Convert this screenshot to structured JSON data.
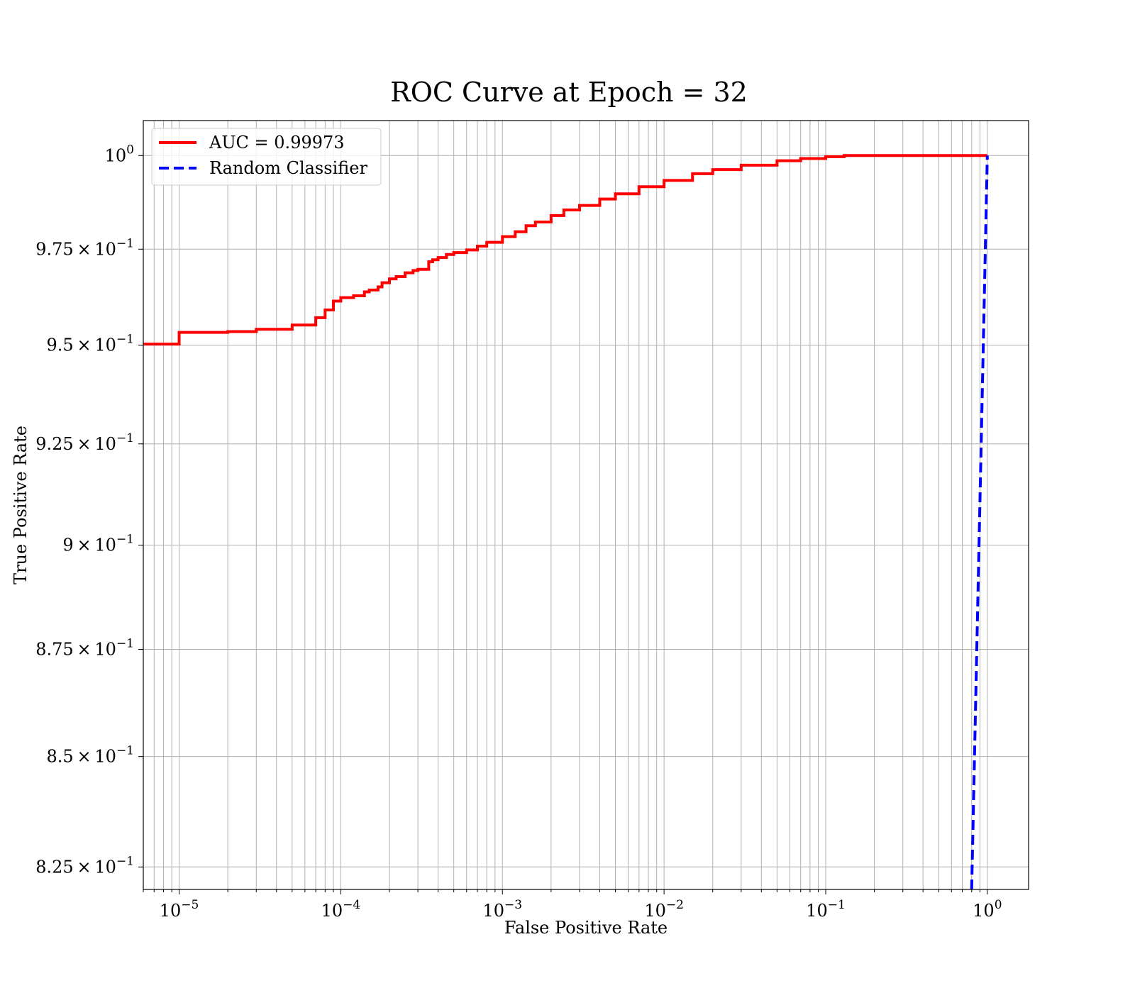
{
  "chart_data": {
    "type": "line",
    "title": "ROC Curve at Epoch = 32",
    "xlabel": "False Positive Rate",
    "ylabel": "True Positive Rate",
    "xscale": "log",
    "yscale": "log",
    "xlim": [
      6e-06,
      1.8
    ],
    "ylim": [
      0.82,
      1.0095
    ],
    "grid": true,
    "legend_position": "top-left",
    "x_ticks": [
      {
        "value": 1e-05,
        "base": "10",
        "exp": "−5"
      },
      {
        "value": 0.0001,
        "base": "10",
        "exp": "−4"
      },
      {
        "value": 0.001,
        "base": "10",
        "exp": "−3"
      },
      {
        "value": 0.01,
        "base": "10",
        "exp": "−2"
      },
      {
        "value": 0.1,
        "base": "10",
        "exp": "−1"
      },
      {
        "value": 1,
        "base": "10",
        "exp": "0"
      }
    ],
    "y_ticks": [
      {
        "value": 1.0,
        "mant": "",
        "base": "10",
        "exp": "0"
      },
      {
        "value": 0.975,
        "mant": "9.75",
        "base": "10",
        "exp": "−1"
      },
      {
        "value": 0.95,
        "mant": "9.5",
        "base": "10",
        "exp": "−1"
      },
      {
        "value": 0.925,
        "mant": "9.25",
        "base": "10",
        "exp": "−1"
      },
      {
        "value": 0.9,
        "mant": "9",
        "base": "10",
        "exp": "−1"
      },
      {
        "value": 0.875,
        "mant": "8.75",
        "base": "10",
        "exp": "−1"
      },
      {
        "value": 0.85,
        "mant": "8.5",
        "base": "10",
        "exp": "−1"
      },
      {
        "value": 0.825,
        "mant": "8.25",
        "base": "10",
        "exp": "−1"
      }
    ],
    "series": [
      {
        "name": "AUC = 0.99973",
        "color": "#ff0000",
        "style": "solid",
        "step": true,
        "x": [
          6e-06,
          1e-05,
          2e-05,
          3e-05,
          5e-05,
          7e-05,
          8e-05,
          9e-05,
          0.0001,
          0.00012,
          0.00014,
          0.00015,
          0.00017,
          0.00018,
          0.0002,
          0.00022,
          0.00025,
          0.00028,
          0.0003,
          0.00035,
          0.00037,
          0.0004,
          0.00045,
          0.0005,
          0.0006,
          0.0007,
          0.0008,
          0.001,
          0.0012,
          0.0014,
          0.0016,
          0.002,
          0.0024,
          0.003,
          0.004,
          0.005,
          0.007,
          0.01,
          0.015,
          0.02,
          0.03,
          0.05,
          0.07,
          0.1,
          0.13,
          0.2,
          0.5,
          1.0
        ],
        "y": [
          0.9503,
          0.9533,
          0.9535,
          0.9541,
          0.9552,
          0.9571,
          0.9591,
          0.9614,
          0.9623,
          0.9628,
          0.9638,
          0.9643,
          0.9651,
          0.9662,
          0.9672,
          0.9678,
          0.9688,
          0.9694,
          0.9697,
          0.9717,
          0.9722,
          0.9728,
          0.9736,
          0.9741,
          0.9748,
          0.9758,
          0.9768,
          0.9783,
          0.9796,
          0.9812,
          0.9822,
          0.9839,
          0.9854,
          0.9866,
          0.9883,
          0.9897,
          0.9916,
          0.9933,
          0.9951,
          0.9962,
          0.9974,
          0.9986,
          0.9992,
          0.9997,
          1.0,
          1.0,
          1.0,
          1.0
        ]
      },
      {
        "name": "Random Classifier",
        "color": "#0000ff",
        "style": "dashed",
        "step": false,
        "x": [
          0.8,
          1.0
        ],
        "y": [
          0.8,
          1.0
        ]
      }
    ]
  }
}
